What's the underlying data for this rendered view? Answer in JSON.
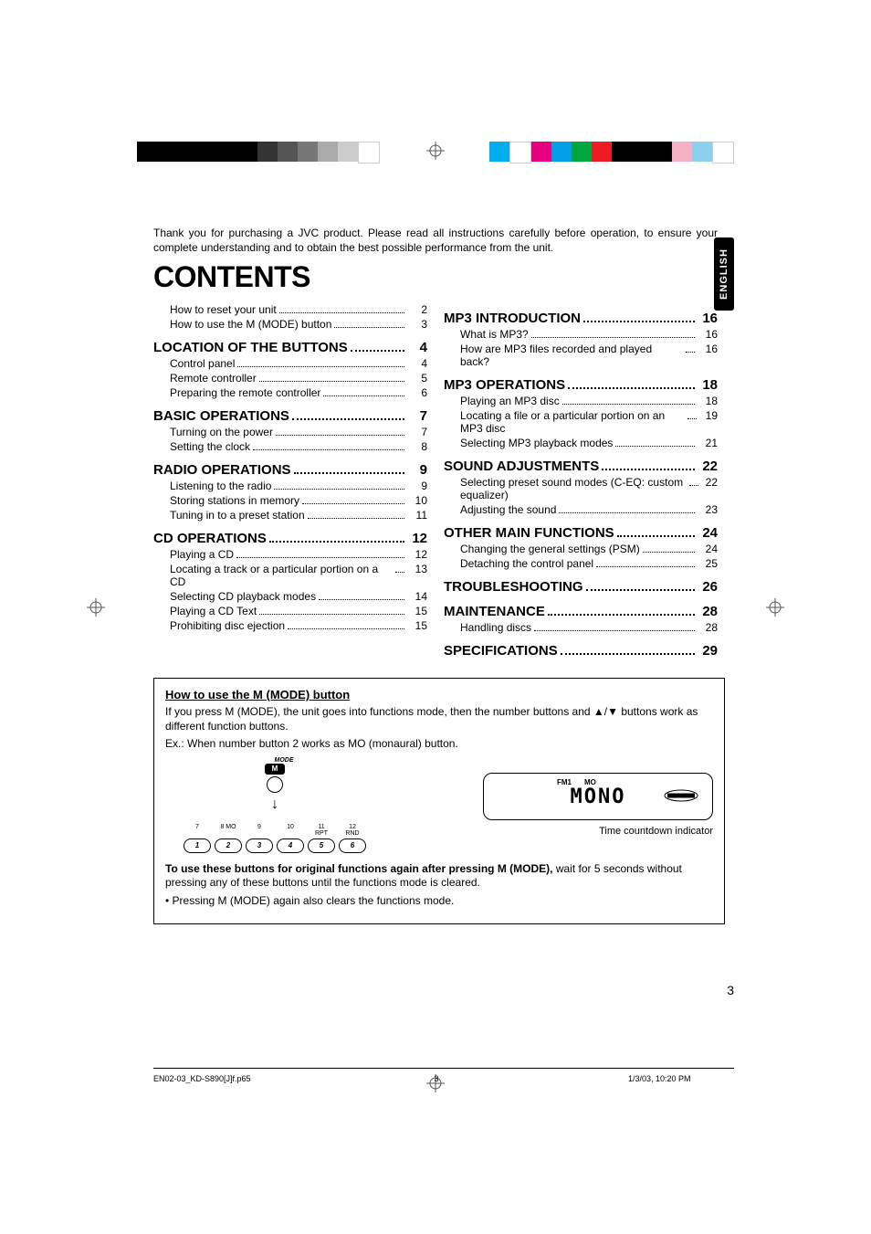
{
  "colorbars": {
    "left": [
      "#000000",
      "#000000",
      "#000000",
      "#000000",
      "#000000",
      "#000000",
      "#333333",
      "#555555",
      "#777777",
      "#aaaaaa",
      "#cccccc",
      "#ffffff"
    ],
    "right": [
      "#00aeef",
      "#ffffff",
      "#e4007f",
      "#00a0e9",
      "#00a63c",
      "#ed1c24",
      "#000000",
      "#000000",
      "#000000",
      "#f4b1c6",
      "#8cd0ee",
      "#ffffff"
    ]
  },
  "intro": "Thank you for purchasing a JVC product. Please read all instructions carefully before operation, to ensure your complete understanding and to obtain the best possible performance from the unit.",
  "title": "CONTENTS",
  "lang": "ENGLISH",
  "page_num": "3",
  "toc_left": [
    {
      "type": "item",
      "label": "How to reset your unit",
      "page": "2"
    },
    {
      "type": "item",
      "label": "How to use the M (MODE) button",
      "page": "3"
    },
    {
      "type": "section",
      "label": "LOCATION OF THE BUTTONS",
      "page": "4"
    },
    {
      "type": "item",
      "label": "Control panel",
      "page": "4"
    },
    {
      "type": "item",
      "label": "Remote controller",
      "page": "5"
    },
    {
      "type": "item",
      "label": "Preparing the remote controller",
      "page": "6"
    },
    {
      "type": "section",
      "label": "BASIC OPERATIONS",
      "page": "7"
    },
    {
      "type": "item",
      "label": "Turning on the power",
      "page": "7"
    },
    {
      "type": "item",
      "label": "Setting the clock",
      "page": "8"
    },
    {
      "type": "section",
      "label": "RADIO OPERATIONS",
      "page": "9"
    },
    {
      "type": "item",
      "label": "Listening to the radio",
      "page": "9"
    },
    {
      "type": "item",
      "label": "Storing stations in memory",
      "page": "10"
    },
    {
      "type": "item",
      "label": "Tuning in to a preset station",
      "page": "11"
    },
    {
      "type": "section",
      "label": "CD OPERATIONS",
      "page": "12"
    },
    {
      "type": "item",
      "label": "Playing a CD",
      "page": "12"
    },
    {
      "type": "item",
      "label": "Locating a track or a particular portion on a CD",
      "page": "13"
    },
    {
      "type": "item",
      "label": "Selecting CD playback modes",
      "page": "14"
    },
    {
      "type": "item",
      "label": "Playing a CD Text",
      "page": "15"
    },
    {
      "type": "item",
      "label": "Prohibiting disc ejection",
      "page": "15"
    }
  ],
  "toc_right": [
    {
      "type": "section",
      "label": "MP3 INTRODUCTION",
      "page": "16"
    },
    {
      "type": "item",
      "label": "What is MP3?",
      "page": "16"
    },
    {
      "type": "item",
      "label": "How are MP3 files recorded and played back?",
      "page": "16"
    },
    {
      "type": "section",
      "label": "MP3 OPERATIONS",
      "page": "18"
    },
    {
      "type": "item",
      "label": "Playing an MP3 disc",
      "page": "18"
    },
    {
      "type": "item",
      "label": "Locating a file or a particular portion on an MP3 disc",
      "page": "19"
    },
    {
      "type": "item",
      "label": "Selecting MP3 playback modes",
      "page": "21"
    },
    {
      "type": "section",
      "label": "SOUND ADJUSTMENTS",
      "page": "22"
    },
    {
      "type": "item",
      "label": "Selecting preset sound modes (C-EQ: custom equalizer)",
      "page": "22"
    },
    {
      "type": "item",
      "label": "Adjusting the sound",
      "page": "23"
    },
    {
      "type": "section",
      "label": "OTHER MAIN FUNCTIONS",
      "page": "24"
    },
    {
      "type": "item",
      "label": "Changing the general settings (PSM)",
      "page": "24"
    },
    {
      "type": "item",
      "label": "Detaching the control panel",
      "page": "25"
    },
    {
      "type": "section",
      "label": "TROUBLESHOOTING",
      "page": "26"
    },
    {
      "type": "section",
      "label": "MAINTENANCE",
      "page": "28"
    },
    {
      "type": "item",
      "label": "Handling discs",
      "page": "28"
    },
    {
      "type": "section",
      "label": "SPECIFICATIONS",
      "page": "29"
    }
  ],
  "box": {
    "heading": "How to use the M (MODE) button",
    "p1": "If you press M (MODE), the unit goes into functions mode, then the number buttons and ▲/▼ buttons work as different function buttons.",
    "p2": "Ex.:  When number button 2 works as MO (monaural) button.",
    "mode_top": "MODE",
    "mode_key": "M",
    "num_labels": [
      "7",
      "8  MO",
      "9",
      "10",
      "11 RPT",
      "12 RND"
    ],
    "ovals": [
      "1",
      "2",
      "3",
      "4",
      "5",
      "6"
    ],
    "display_tags": [
      "FM1",
      "MO"
    ],
    "display_text": "MONO",
    "caption": "Time countdown indicator",
    "p3a": "To use these buttons for original functions again after pressing M (MODE),",
    "p3b": " wait for 5 seconds without pressing any of these buttons until the functions mode is cleared.",
    "p4": "• Pressing M (MODE) again also clears the functions mode."
  },
  "footer": {
    "file": "EN02-03_KD-S890[J]f.p65",
    "fp": "3",
    "date": "1/3/03, 10:20 PM"
  }
}
